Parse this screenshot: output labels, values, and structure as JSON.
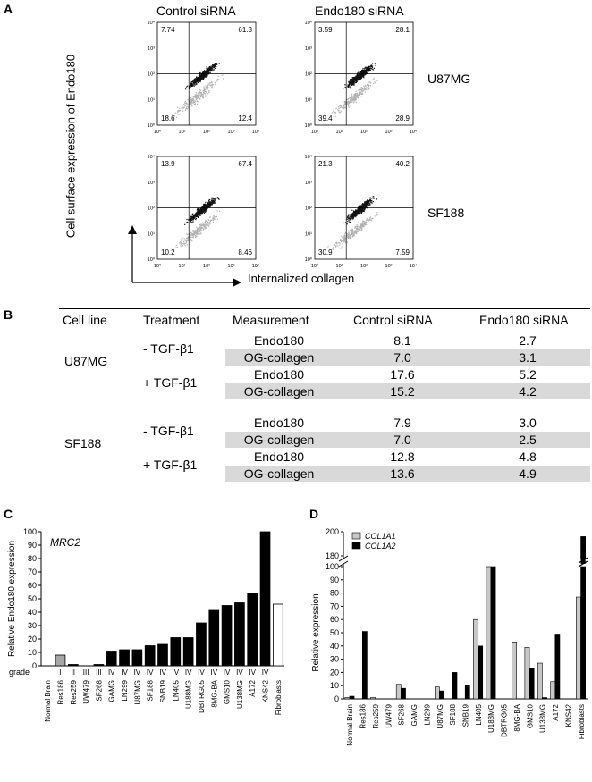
{
  "panels": {
    "a": {
      "letter": "A",
      "columns": [
        "Control siRNA",
        "Endo180 siRNA"
      ],
      "rows": [
        "U87MG",
        "SF188"
      ],
      "y_axis_label": "Cell surface expression of Endo180",
      "x_axis_label": "Internalized collagen",
      "tick_labels": [
        "10⁰",
        "10¹",
        "10²",
        "10³",
        "10⁴"
      ],
      "plots": [
        {
          "row": "U87MG",
          "col": "Control siRNA",
          "ul": "7.74",
          "ur": "61.3",
          "ll": "18.6",
          "lr": "12.4"
        },
        {
          "row": "U87MG",
          "col": "Endo180 siRNA",
          "ul": "3.59",
          "ur": "28.1",
          "ll": "39.4",
          "lr": "28.9"
        },
        {
          "row": "SF188",
          "col": "Control siRNA",
          "ul": "13.9",
          "ur": "67.4",
          "ll": "10.2",
          "lr": "8.46"
        },
        {
          "row": "SF188",
          "col": "Endo180 siRNA",
          "ul": "21.3",
          "ur": "40.2",
          "ll": "30.9",
          "lr": "7.59"
        }
      ]
    },
    "b": {
      "letter": "B",
      "headers": [
        "Cell line",
        "Treatment",
        "Measurement",
        "Control siRNA",
        "Endo180 siRNA"
      ],
      "groups": [
        {
          "cell_line": "U87MG",
          "treatments": [
            {
              "label": "- TGF-β1",
              "rows": [
                {
                  "measure": "Endo180",
                  "control": "8.1",
                  "endo": "2.7"
                },
                {
                  "measure": "OG-collagen",
                  "control": "7.0",
                  "endo": "3.1"
                }
              ]
            },
            {
              "label": "+ TGF-β1",
              "rows": [
                {
                  "measure": "Endo180",
                  "control": "17.6",
                  "endo": "5.2"
                },
                {
                  "measure": "OG-collagen",
                  "control": "15.2",
                  "endo": "4.2"
                }
              ]
            }
          ]
        },
        {
          "cell_line": "SF188",
          "treatments": [
            {
              "label": "- TGF-β1",
              "rows": [
                {
                  "measure": "Endo180",
                  "control": "7.9",
                  "endo": "3.0"
                },
                {
                  "measure": "OG-collagen",
                  "control": "7.0",
                  "endo": "2.5"
                }
              ]
            },
            {
              "label": "+ TGF-β1",
              "rows": [
                {
                  "measure": "Endo180",
                  "control": "12.8",
                  "endo": "4.8"
                },
                {
                  "measure": "OG-collagen",
                  "control": "13.6",
                  "endo": "4.9"
                }
              ]
            }
          ]
        }
      ]
    }
  },
  "chart_data": [
    {
      "panel": "C",
      "type": "bar",
      "title": "MRC2",
      "ylabel": "Relative Endo180 expression",
      "grade_label": "grade",
      "ylim": [
        0,
        100
      ],
      "yticks": [
        0,
        10,
        20,
        30,
        40,
        50,
        60,
        70,
        80,
        90,
        100
      ],
      "categories": [
        "Normal Brain",
        "Res186",
        "Res259",
        "UW479",
        "SF268",
        "GAMG",
        "LN299",
        "U87MG",
        "SF188",
        "SNB19",
        "LN405",
        "U188MG",
        "DBTRG05",
        "8MG-BA",
        "GMS10",
        "U138MG",
        "A172",
        "KNS42",
        "Fibroblasts"
      ],
      "grades": [
        "",
        "I",
        "II",
        "III",
        "III",
        "IV",
        "IV",
        "IV",
        "IV",
        "IV",
        "IV",
        "IV",
        "IV",
        "IV",
        "IV",
        "IV",
        "IV",
        "IV",
        ""
      ],
      "values": [
        0,
        8,
        1,
        0,
        1,
        11,
        12,
        12,
        15,
        16,
        21,
        21,
        32,
        42,
        45,
        47,
        54,
        100,
        46
      ],
      "colors": [
        "#000000",
        "#a6a6a6",
        "#000000",
        "#000000",
        "#000000",
        "#000000",
        "#000000",
        "#000000",
        "#000000",
        "#000000",
        "#000000",
        "#000000",
        "#000000",
        "#000000",
        "#000000",
        "#000000",
        "#000000",
        "#000000",
        "#ffffff"
      ]
    },
    {
      "panel": "D",
      "type": "bar",
      "ylabel": "Relative expression",
      "ylim": [
        0,
        200
      ],
      "axis_break": [
        100,
        180
      ],
      "yticks_lower": [
        0,
        10,
        20,
        30,
        40,
        50,
        60,
        70,
        80,
        90,
        100
      ],
      "yticks_upper": [
        180,
        200
      ],
      "categories": [
        "Normal Brain",
        "Res186",
        "Res259",
        "UW479",
        "SF268",
        "GAMG",
        "LN299",
        "U87MG",
        "SF188",
        "SNB19",
        "LN405",
        "U188MG",
        "DBTRG05",
        "8MG-BA",
        "GMS10",
        "U138MG",
        "A172",
        "KNS42",
        "Fibroblasts"
      ],
      "series": [
        {
          "name": "COL1A1",
          "color": "#c8c8c8",
          "values": [
            1,
            0,
            1,
            0,
            11,
            0,
            0,
            9,
            0,
            0,
            60,
            100,
            0,
            43,
            39,
            27,
            13,
            0,
            77
          ]
        },
        {
          "name": "COL1A2",
          "color": "#000000",
          "values": [
            2,
            51,
            0,
            0,
            8,
            0,
            0,
            6,
            20,
            10,
            40,
            100,
            0,
            0,
            23,
            1,
            49,
            0,
            196
          ]
        }
      ],
      "legend_position": "top-left"
    }
  ]
}
